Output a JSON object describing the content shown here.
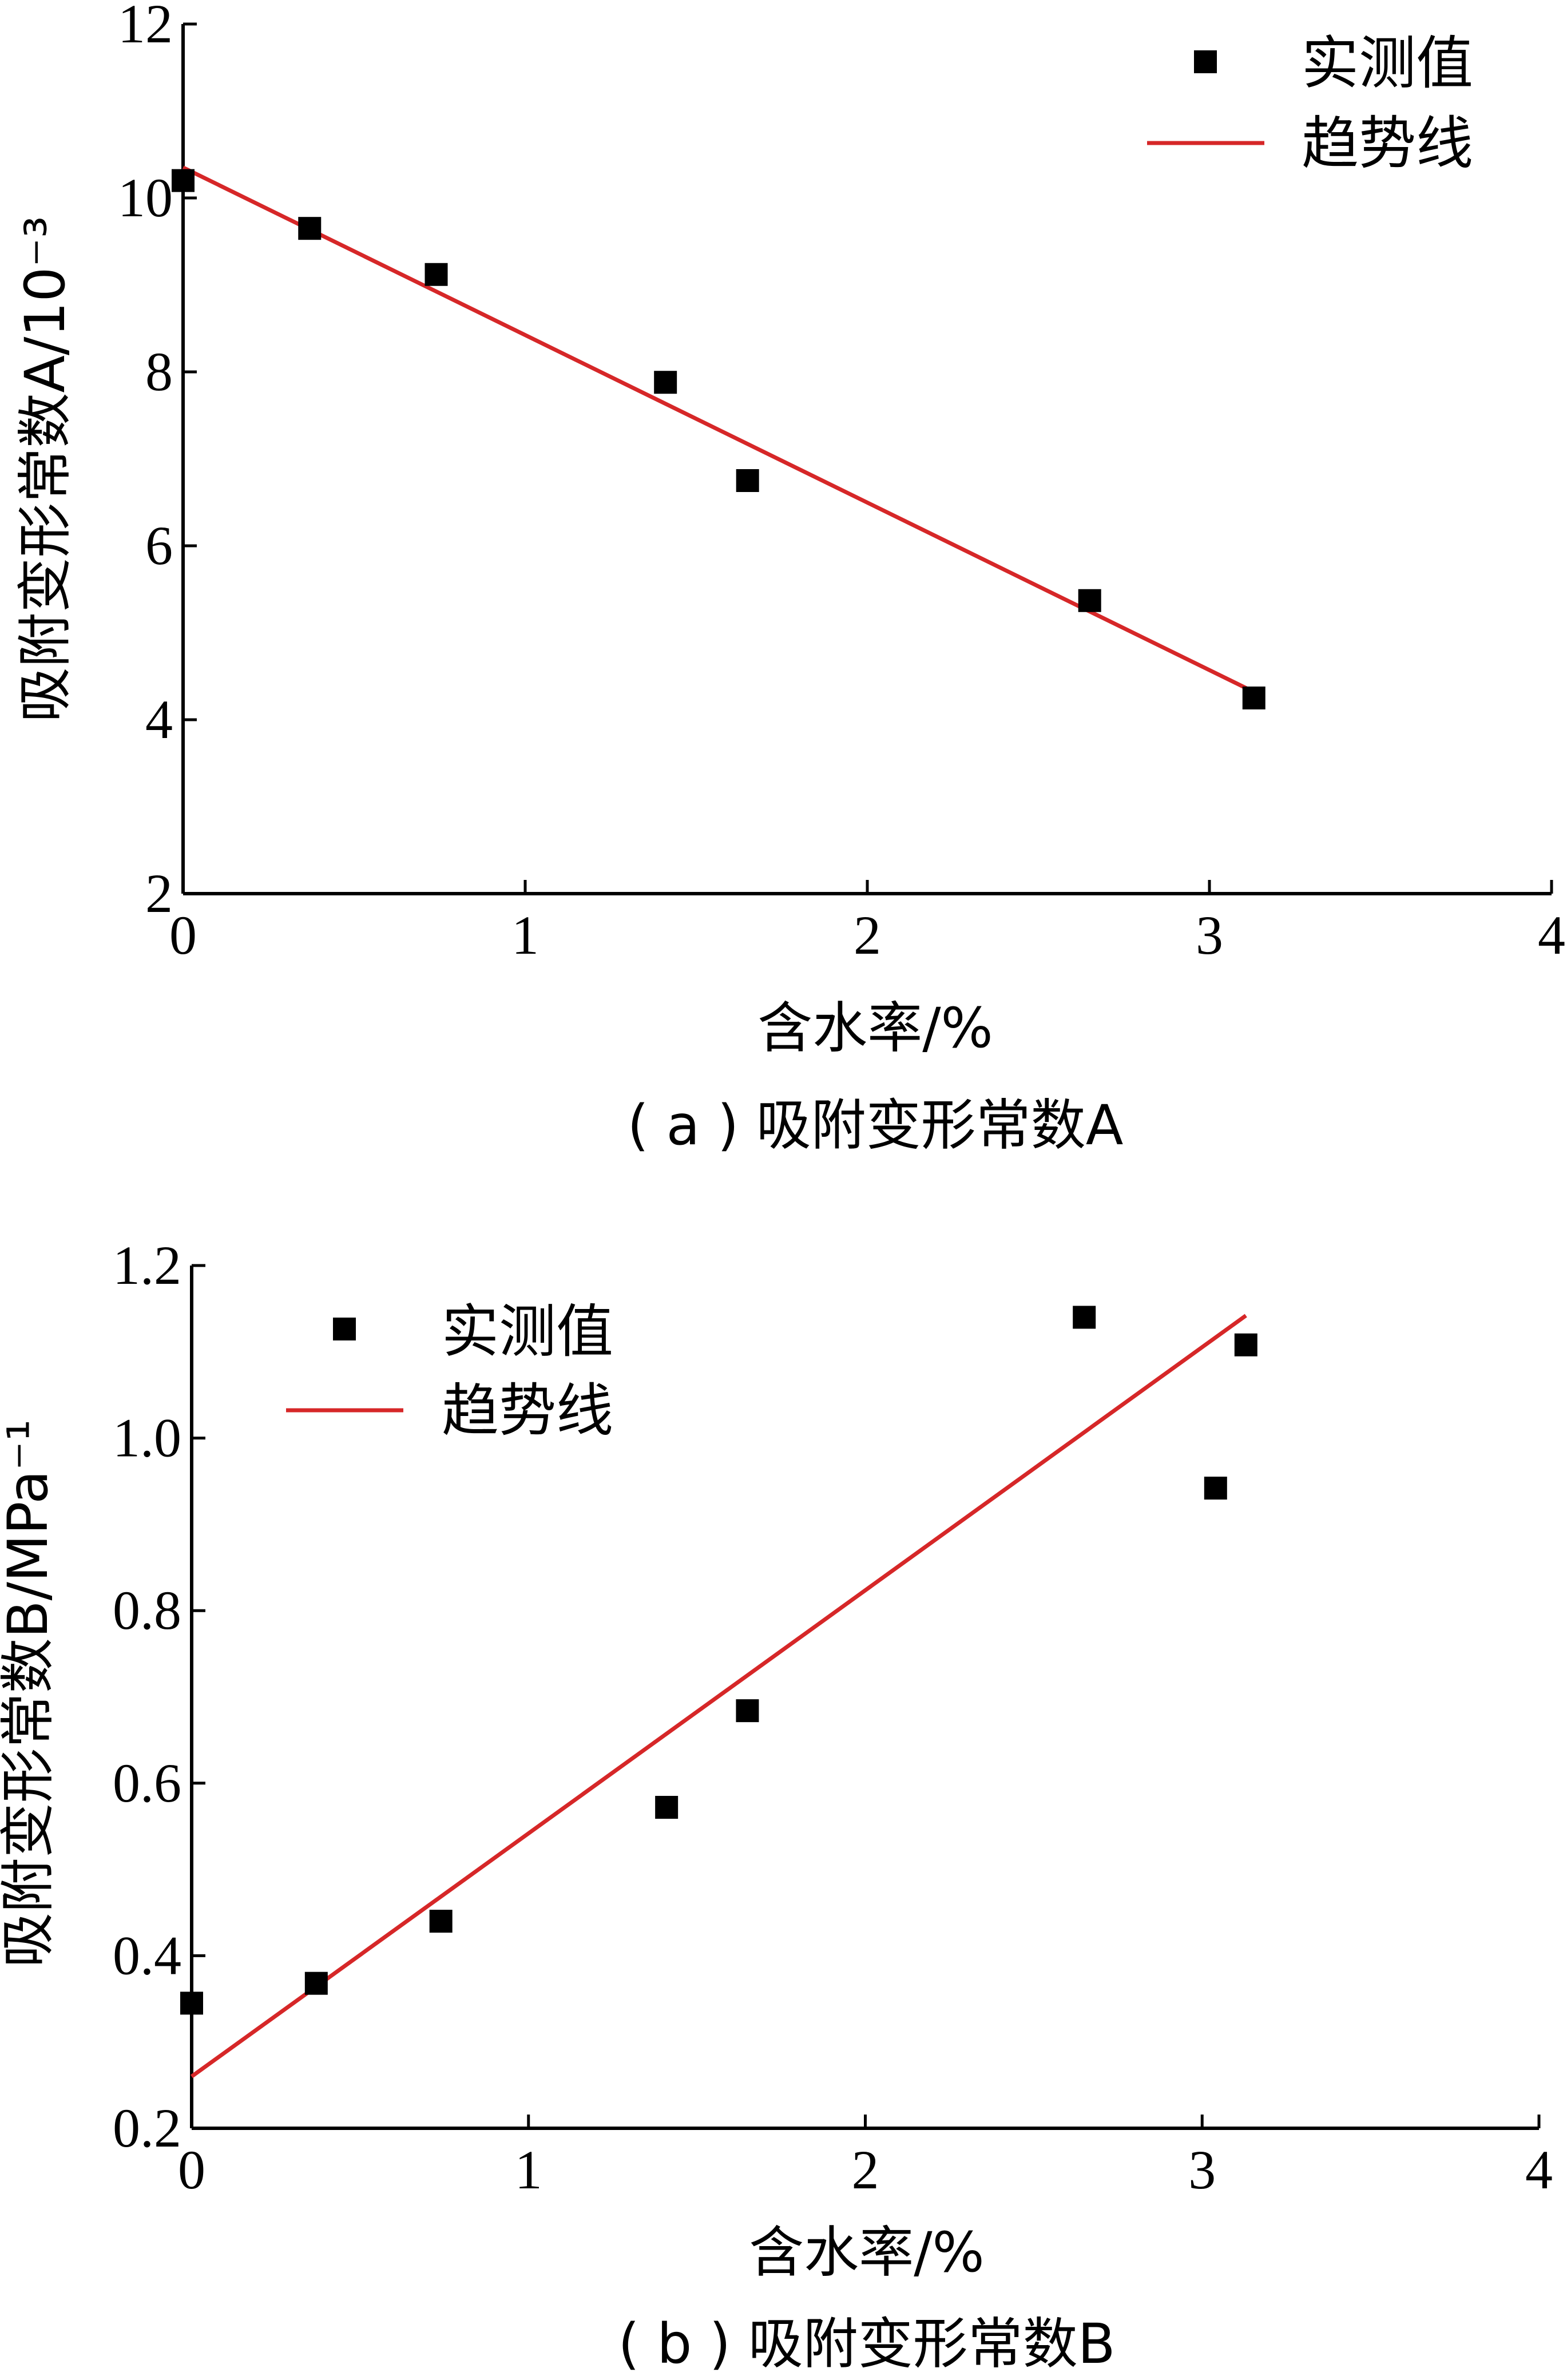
{
  "chart_data": [
    {
      "type": "scatter",
      "panel": "a",
      "caption": "( a ) 吸附变形常数A",
      "xlabel": "含水率/%",
      "ylabel": "吸附变形常数A/10⁻³",
      "xlim": [
        0,
        4
      ],
      "ylim": [
        2,
        12
      ],
      "xticks": [
        "0",
        "1",
        "2",
        "3",
        "4"
      ],
      "yticks": [
        "2",
        "4",
        "6",
        "8",
        "10",
        "12"
      ],
      "legend": [
        "实测值",
        "趋势线"
      ],
      "legend_position": "top-right",
      "colors": {
        "points": "#000000",
        "trend": "#d62728"
      },
      "points": {
        "name": "实测值",
        "x": [
          0.0,
          0.37,
          0.74,
          1.41,
          1.65,
          2.65,
          3.13
        ],
        "y": [
          10.2,
          9.65,
          9.12,
          7.88,
          6.75,
          5.37,
          4.25
        ]
      },
      "trend": {
        "name": "趋势线",
        "x": [
          0.0,
          3.13
        ],
        "y": [
          10.35,
          4.32
        ]
      }
    },
    {
      "type": "scatter",
      "panel": "b",
      "caption": "( b ) 吸附变形常数B",
      "xlabel": "含水率/%",
      "ylabel": "吸附变形常数B/MPa⁻¹",
      "xlim": [
        0,
        4
      ],
      "ylim": [
        0.2,
        1.2
      ],
      "xticks": [
        "0",
        "1",
        "2",
        "3",
        "4"
      ],
      "yticks": [
        "0.2",
        "0.4",
        "0.6",
        "0.8",
        "1.0",
        "1.2"
      ],
      "legend": [
        "实测值",
        "趋势线"
      ],
      "legend_position": "top-left",
      "colors": {
        "points": "#000000",
        "trend": "#d62728"
      },
      "points": {
        "name": "实测值",
        "x": [
          0.0,
          0.37,
          0.74,
          1.41,
          1.65,
          2.65,
          3.04,
          3.13
        ],
        "y": [
          0.345,
          0.368,
          0.44,
          0.572,
          0.684,
          1.14,
          0.942,
          1.108
        ]
      },
      "trend": {
        "name": "趋势线",
        "x": [
          0.0,
          3.13
        ],
        "y": [
          0.26,
          1.142
        ]
      }
    }
  ]
}
